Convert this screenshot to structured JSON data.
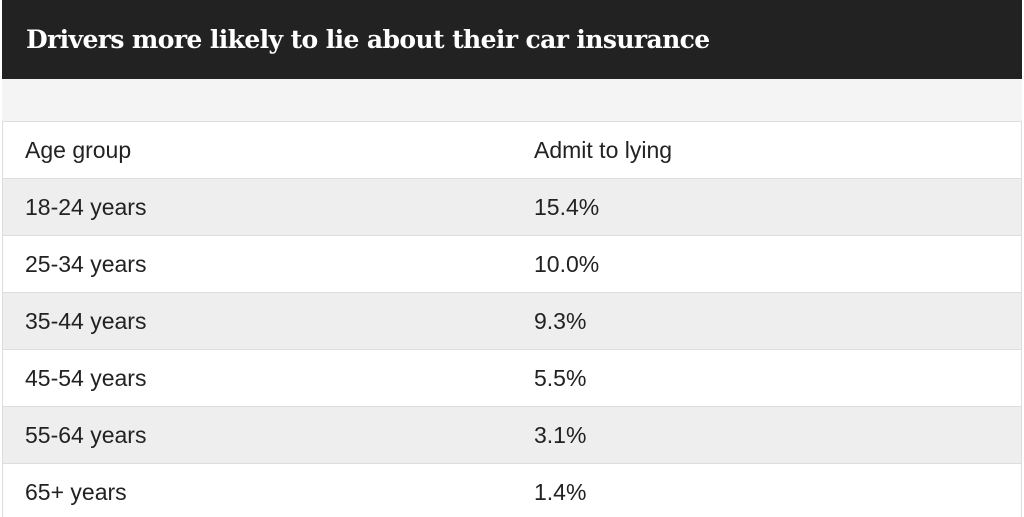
{
  "chart_data": {
    "type": "table",
    "title": "Drivers more likely to lie about their car insurance",
    "columns": [
      "Age group",
      "Admit to lying"
    ],
    "rows": [
      [
        "18-24 years",
        "15.4%"
      ],
      [
        "25-34 years",
        "10.0%"
      ],
      [
        "35-44 years",
        "9.3%"
      ],
      [
        "45-54 years",
        "5.5%"
      ],
      [
        "55-64 years",
        "3.1%"
      ],
      [
        "65+ years",
        "1.4%"
      ]
    ],
    "values": [
      15.4,
      10.0,
      9.3,
      5.5,
      3.1,
      1.4
    ]
  },
  "colors": {
    "header_bg": "#222222",
    "header_text": "#ffffff",
    "stripe": "#eeeeee",
    "border": "#dddddd"
  }
}
